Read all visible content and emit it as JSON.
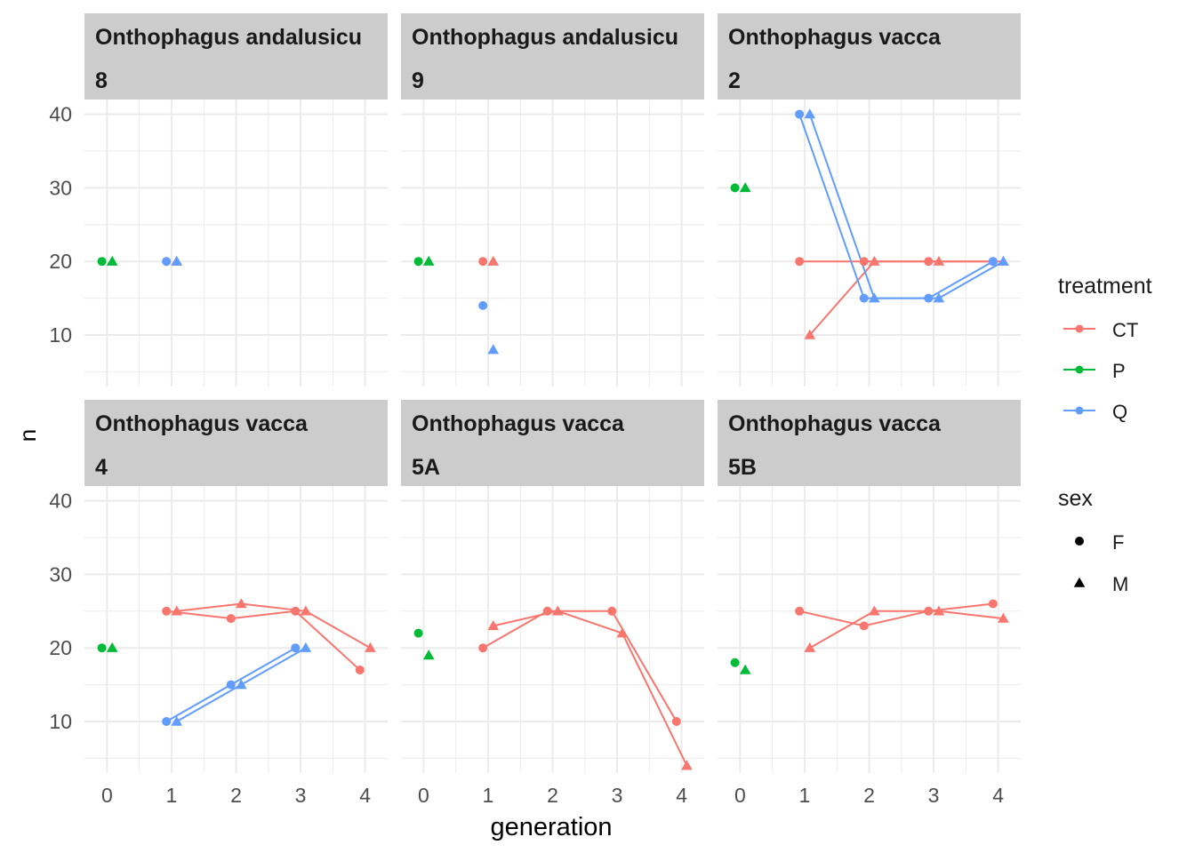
{
  "chart_data": {
    "type": "line",
    "xlabel": "generation",
    "ylabel": "n",
    "x_ticks": [
      0,
      1,
      2,
      3,
      4
    ],
    "y_ticks": [
      10,
      20,
      30,
      40
    ],
    "xlim": [
      -0.35,
      4.35
    ],
    "ylim": [
      3,
      42
    ],
    "grid": true,
    "legend_position": "right",
    "legends": [
      {
        "title": "treatment",
        "kind": "color",
        "entries": [
          {
            "label": "CT",
            "color": "#F8766D"
          },
          {
            "label": "P",
            "color": "#00BA38"
          },
          {
            "label": "Q",
            "color": "#619CFF"
          }
        ]
      },
      {
        "title": "sex",
        "kind": "shape",
        "entries": [
          {
            "label": "F",
            "shape": "circle"
          },
          {
            "label": "M",
            "shape": "triangle"
          }
        ]
      }
    ],
    "panels": [
      {
        "species": "Onthophagus andalusicu",
        "population": "8",
        "series": [
          {
            "treatment": "P",
            "sex": "F",
            "points": [
              [
                0,
                20
              ]
            ]
          },
          {
            "treatment": "P",
            "sex": "M",
            "points": [
              [
                0,
                20
              ]
            ]
          },
          {
            "treatment": "CT",
            "sex": "F",
            "points": [
              [
                1,
                20
              ]
            ]
          },
          {
            "treatment": "CT",
            "sex": "M",
            "points": [
              [
                1,
                20
              ]
            ]
          },
          {
            "treatment": "Q",
            "sex": "F",
            "points": [
              [
                1,
                20
              ]
            ]
          },
          {
            "treatment": "Q",
            "sex": "M",
            "points": [
              [
                1,
                20
              ]
            ]
          }
        ]
      },
      {
        "species": "Onthophagus andalusicu",
        "population": "9",
        "series": [
          {
            "treatment": "P",
            "sex": "F",
            "points": [
              [
                0,
                20
              ]
            ]
          },
          {
            "treatment": "P",
            "sex": "M",
            "points": [
              [
                0,
                20
              ]
            ]
          },
          {
            "treatment": "CT",
            "sex": "F",
            "points": [
              [
                1,
                20
              ]
            ]
          },
          {
            "treatment": "CT",
            "sex": "M",
            "points": [
              [
                1,
                20
              ]
            ]
          },
          {
            "treatment": "Q",
            "sex": "F",
            "points": [
              [
                1,
                14
              ]
            ]
          },
          {
            "treatment": "Q",
            "sex": "M",
            "points": [
              [
                1,
                8
              ]
            ]
          }
        ]
      },
      {
        "species": "Onthophagus vacca",
        "population": "2",
        "series": [
          {
            "treatment": "P",
            "sex": "F",
            "points": [
              [
                0,
                30
              ]
            ]
          },
          {
            "treatment": "P",
            "sex": "M",
            "points": [
              [
                0,
                30
              ]
            ]
          },
          {
            "treatment": "CT",
            "sex": "F",
            "points": [
              [
                1,
                20
              ],
              [
                2,
                20
              ],
              [
                3,
                20
              ],
              [
                4,
                20
              ]
            ]
          },
          {
            "treatment": "CT",
            "sex": "M",
            "points": [
              [
                1,
                10
              ],
              [
                2,
                20
              ],
              [
                3,
                20
              ],
              [
                4,
                20
              ]
            ]
          },
          {
            "treatment": "Q",
            "sex": "F",
            "points": [
              [
                1,
                40
              ],
              [
                2,
                15
              ],
              [
                3,
                15
              ],
              [
                4,
                20
              ]
            ]
          },
          {
            "treatment": "Q",
            "sex": "M",
            "points": [
              [
                1,
                40
              ],
              [
                2,
                15
              ],
              [
                3,
                15
              ],
              [
                4,
                20
              ]
            ]
          }
        ]
      },
      {
        "species": "Onthophagus vacca",
        "population": "4",
        "series": [
          {
            "treatment": "P",
            "sex": "F",
            "points": [
              [
                0,
                20
              ]
            ]
          },
          {
            "treatment": "P",
            "sex": "M",
            "points": [
              [
                0,
                20
              ]
            ]
          },
          {
            "treatment": "CT",
            "sex": "F",
            "points": [
              [
                1,
                25
              ],
              [
                2,
                24
              ],
              [
                3,
                25
              ],
              [
                4,
                17
              ]
            ]
          },
          {
            "treatment": "CT",
            "sex": "M",
            "points": [
              [
                1,
                25
              ],
              [
                2,
                26
              ],
              [
                3,
                25
              ],
              [
                4,
                20
              ]
            ]
          },
          {
            "treatment": "Q",
            "sex": "F",
            "points": [
              [
                1,
                10
              ],
              [
                2,
                15
              ],
              [
                3,
                20
              ]
            ]
          },
          {
            "treatment": "Q",
            "sex": "M",
            "points": [
              [
                1,
                10
              ],
              [
                2,
                15
              ],
              [
                3,
                20
              ]
            ]
          }
        ]
      },
      {
        "species": "Onthophagus vacca",
        "population": "5A",
        "series": [
          {
            "treatment": "P",
            "sex": "F",
            "points": [
              [
                0,
                22
              ]
            ]
          },
          {
            "treatment": "P",
            "sex": "M",
            "points": [
              [
                0,
                19
              ]
            ]
          },
          {
            "treatment": "CT",
            "sex": "F",
            "points": [
              [
                1,
                20
              ],
              [
                2,
                25
              ],
              [
                3,
                25
              ],
              [
                4,
                10
              ]
            ]
          },
          {
            "treatment": "CT",
            "sex": "M",
            "points": [
              [
                1,
                23
              ],
              [
                2,
                25
              ],
              [
                3,
                22
              ],
              [
                4,
                4
              ]
            ]
          }
        ]
      },
      {
        "species": "Onthophagus vacca",
        "population": "5B",
        "series": [
          {
            "treatment": "P",
            "sex": "F",
            "points": [
              [
                0,
                18
              ]
            ]
          },
          {
            "treatment": "P",
            "sex": "M",
            "points": [
              [
                0,
                17
              ]
            ]
          },
          {
            "treatment": "CT",
            "sex": "F",
            "points": [
              [
                1,
                25
              ],
              [
                2,
                23
              ],
              [
                3,
                25
              ],
              [
                4,
                26
              ]
            ]
          },
          {
            "treatment": "CT",
            "sex": "M",
            "points": [
              [
                1,
                20
              ],
              [
                2,
                25
              ],
              [
                3,
                25
              ],
              [
                4,
                24
              ]
            ]
          }
        ]
      }
    ]
  }
}
